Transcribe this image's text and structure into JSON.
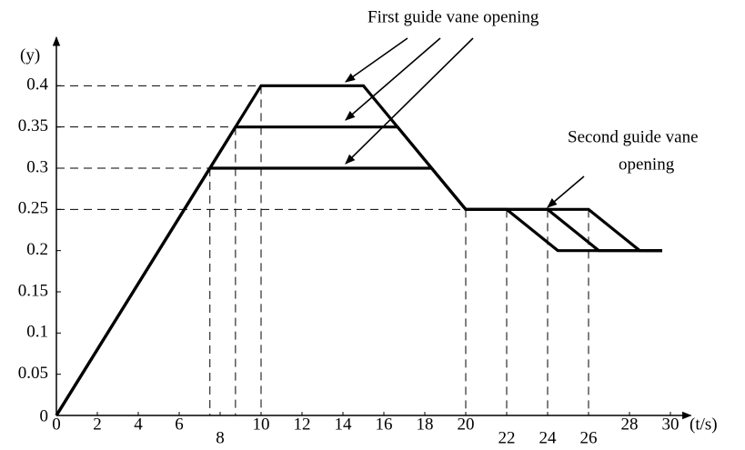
{
  "chart_data": {
    "type": "line",
    "y_label": "(y)",
    "x_label": "(t/s)",
    "annotations": [
      "First guide vane opening",
      "Second guide vane",
      "opening"
    ],
    "series": [
      {
        "color": "#000000",
        "x": [
          0,
          10,
          15,
          20,
          26,
          28.5,
          29.6
        ],
        "values": [
          0,
          0.4,
          0.4,
          0.25,
          0.25,
          0.2,
          0.2
        ]
      },
      {
        "color": "#000000",
        "x": [
          0,
          8.75,
          16.67,
          20,
          24,
          26.5,
          29.6
        ],
        "values": [
          0,
          0.35,
          0.35,
          0.25,
          0.25,
          0.2,
          0.2
        ]
      },
      {
        "color": "#000000",
        "x": [
          0,
          7.5,
          18.33,
          20,
          22,
          24.5,
          29.6
        ],
        "values": [
          0,
          0.3,
          0.3,
          0.25,
          0.25,
          0.2,
          0.2
        ]
      }
    ],
    "hguides": [
      {
        "y": 0.4,
        "x": 10
      },
      {
        "y": 0.35,
        "x": 8.75
      },
      {
        "y": 0.3,
        "x": 7.5
      },
      {
        "y": 0.25,
        "x": 20
      }
    ],
    "vguides": [
      {
        "x": 7.5,
        "y": 0.3
      },
      {
        "x": 8.75,
        "y": 0.35
      },
      {
        "x": 10,
        "y": 0.4
      },
      {
        "x": 20,
        "y": 0.25
      },
      {
        "x": 22,
        "y": 0.25
      },
      {
        "x": 24,
        "y": 0.25
      },
      {
        "x": 26,
        "y": 0.25
      }
    ],
    "xlim": [
      0,
      31
    ],
    "ylim": [
      0,
      0.45
    ],
    "xticks": [
      0,
      2,
      4,
      6,
      8,
      10,
      12,
      14,
      16,
      18,
      20,
      22,
      24,
      26,
      28,
      30
    ],
    "yticks": [
      0,
      0.05,
      0.1,
      0.15,
      0.2,
      0.25,
      0.3,
      0.35,
      0.4
    ]
  }
}
